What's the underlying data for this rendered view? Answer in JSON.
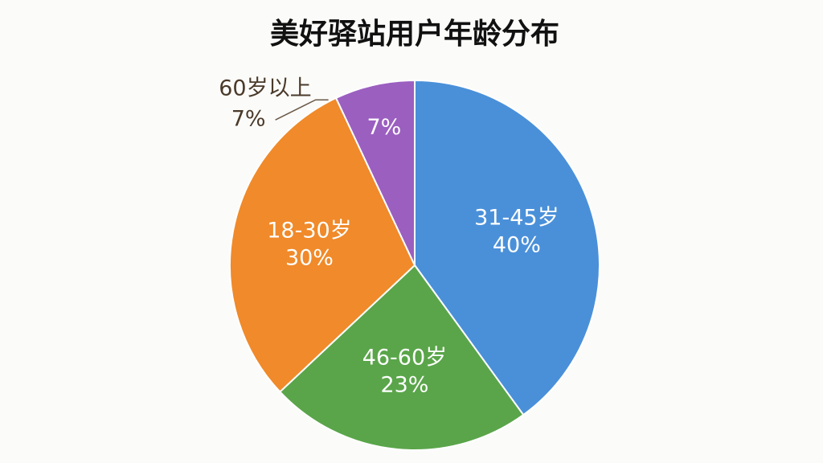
{
  "chart_data": {
    "type": "pie",
    "title": "美好驿站用户年龄分布",
    "categories": [
      "31-45岁",
      "46-60岁",
      "18-30岁",
      "60岁以上"
    ],
    "values": [
      40,
      23,
      30,
      7
    ],
    "value_labels": [
      "40%",
      "23%",
      "30%",
      "7%"
    ],
    "colors": [
      "#4a90d9",
      "#5aa54a",
      "#f08a2a",
      "#9b5fc0"
    ]
  }
}
